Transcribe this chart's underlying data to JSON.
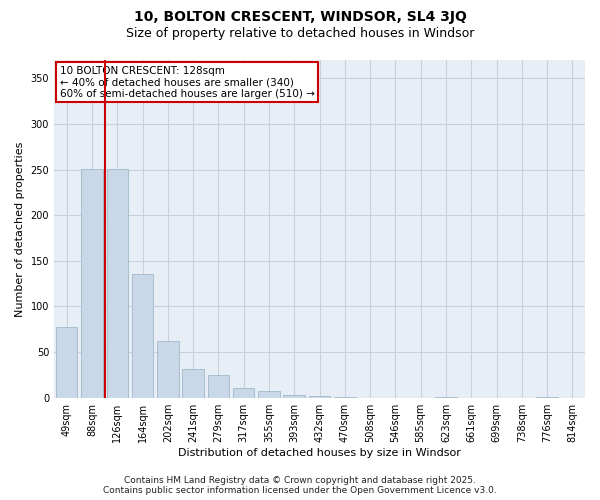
{
  "title": "10, BOLTON CRESCENT, WINDSOR, SL4 3JQ",
  "subtitle": "Size of property relative to detached houses in Windsor",
  "xlabel": "Distribution of detached houses by size in Windsor",
  "ylabel": "Number of detached properties",
  "categories": [
    "49sqm",
    "88sqm",
    "126sqm",
    "164sqm",
    "202sqm",
    "241sqm",
    "279sqm",
    "317sqm",
    "355sqm",
    "393sqm",
    "432sqm",
    "470sqm",
    "508sqm",
    "546sqm",
    "585sqm",
    "623sqm",
    "661sqm",
    "699sqm",
    "738sqm",
    "776sqm",
    "814sqm"
  ],
  "values": [
    78,
    251,
    251,
    135,
    62,
    31,
    25,
    11,
    7,
    3,
    2,
    1,
    0,
    0,
    0,
    1,
    0,
    0,
    0,
    1,
    0
  ],
  "bar_color": "#c8d8e8",
  "bar_edge_color": "#a8bece",
  "vline_x_between": 1.5,
  "marker_label": "10 BOLTON CRESCENT: 128sqm",
  "annotation_line1": "← 40% of detached houses are smaller (340)",
  "annotation_line2": "60% of semi-detached houses are larger (510) →",
  "annotation_box_color": "#cc0000",
  "vline_color": "#cc0000",
  "ylim": [
    0,
    370
  ],
  "yticks": [
    0,
    50,
    100,
    150,
    200,
    250,
    300,
    350
  ],
  "grid_color": "#c8d0de",
  "background_color": "#e8eef6",
  "footer_line1": "Contains HM Land Registry data © Crown copyright and database right 2025.",
  "footer_line2": "Contains public sector information licensed under the Open Government Licence v3.0.",
  "title_fontsize": 10,
  "subtitle_fontsize": 9,
  "xlabel_fontsize": 8,
  "ylabel_fontsize": 8,
  "tick_fontsize": 7,
  "annotation_fontsize": 7.5,
  "footer_fontsize": 6.5
}
